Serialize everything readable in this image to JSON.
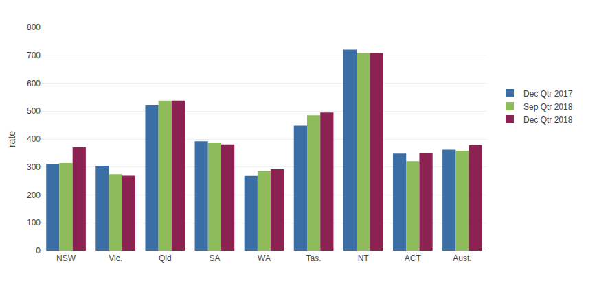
{
  "chart_data": {
    "type": "bar",
    "ylabel": "rate",
    "categories": [
      "NSW",
      "Vic.",
      "Qld",
      "SA",
      "WA",
      "Tas.",
      "NT",
      "ACT",
      "Aust."
    ],
    "series": [
      {
        "name": "Dec Qtr 2017",
        "color": "#3A6EA5",
        "values": [
          311,
          304,
          523,
          392,
          268,
          448,
          720,
          348,
          362
        ]
      },
      {
        "name": "Sep Qtr 2018",
        "color": "#8FBC5A",
        "values": [
          314,
          274,
          538,
          388,
          287,
          485,
          708,
          321,
          358
        ]
      },
      {
        "name": "Dec Qtr 2018",
        "color": "#8B2252",
        "values": [
          371,
          269,
          538,
          381,
          292,
          495,
          708,
          350,
          378
        ]
      }
    ],
    "ylim": [
      0,
      800
    ],
    "yticks": [
      0,
      100,
      200,
      300,
      400,
      500,
      600,
      700,
      800
    ],
    "grid": true,
    "legend": "right"
  }
}
